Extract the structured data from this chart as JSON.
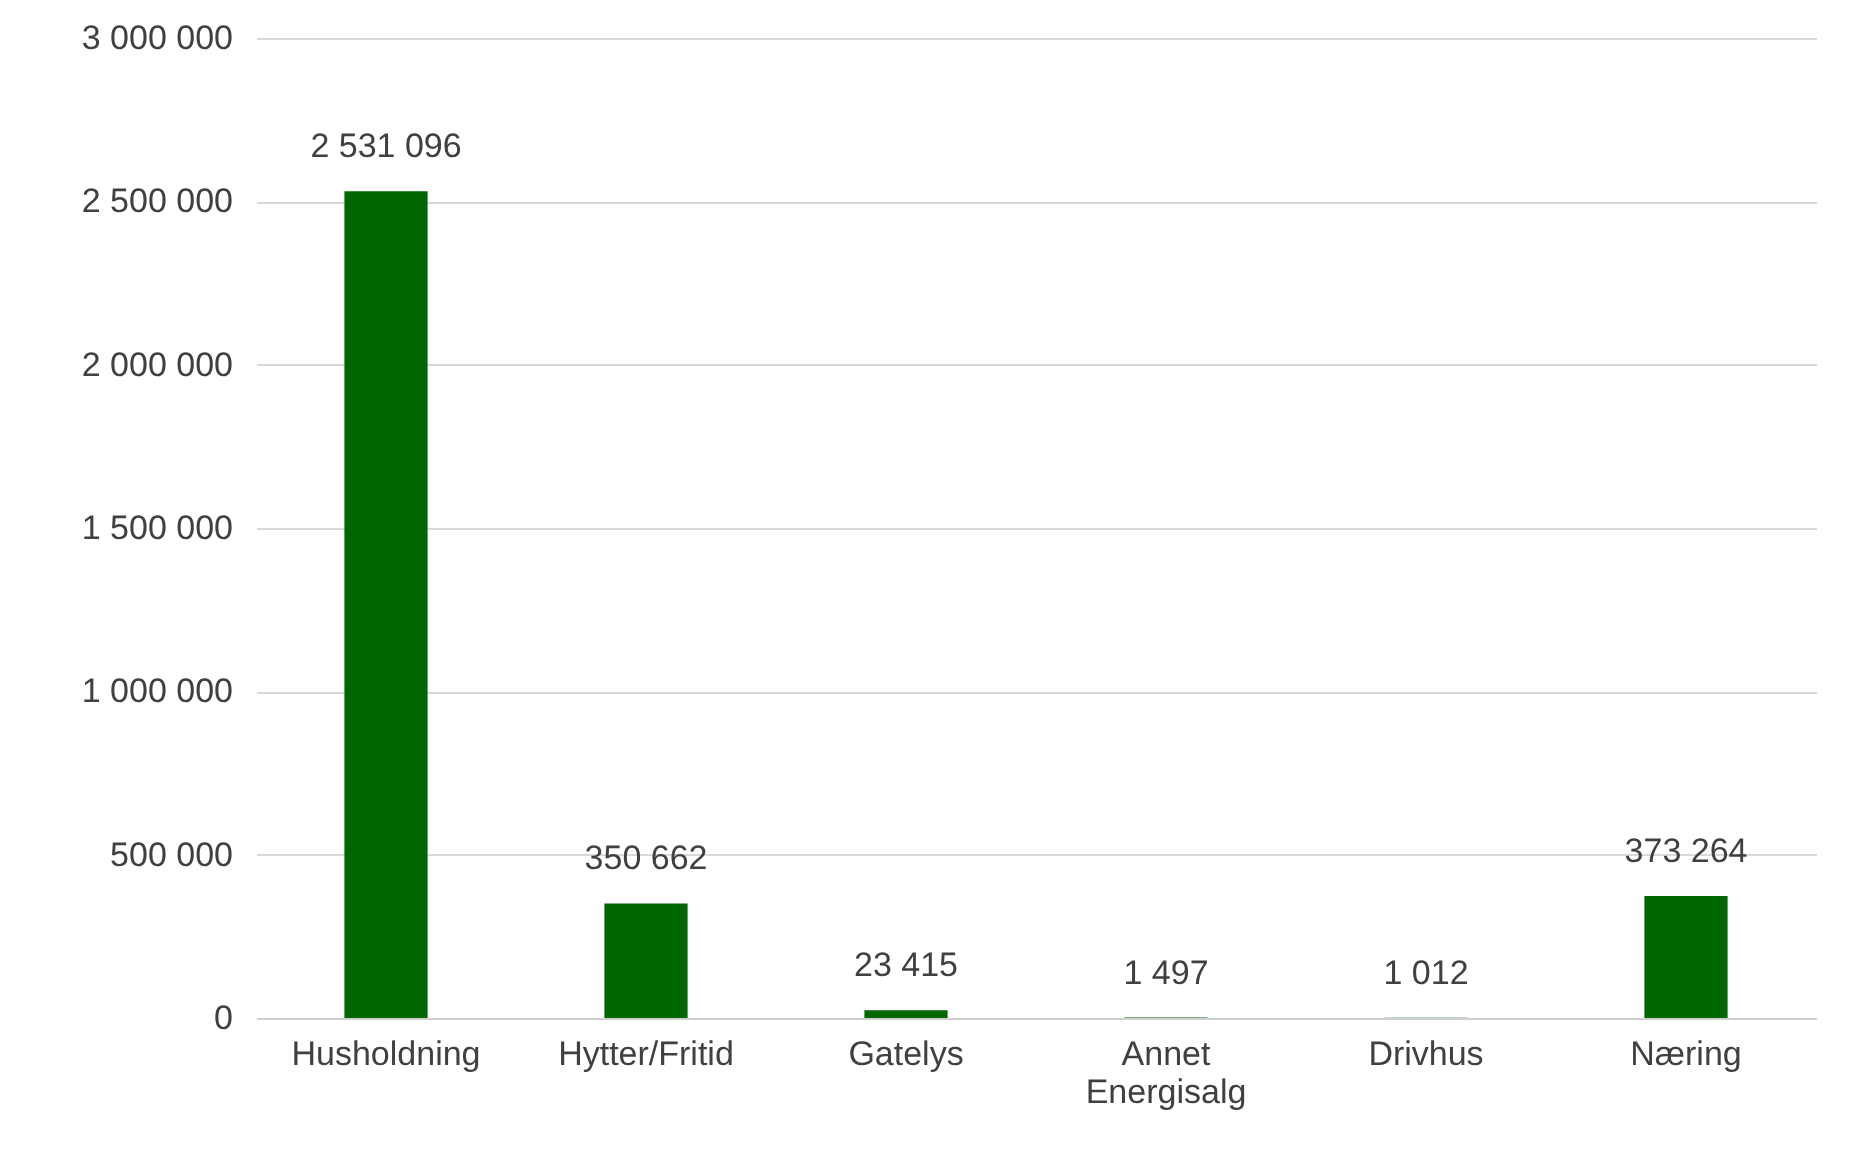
{
  "chart_data": {
    "type": "bar",
    "categories": [
      "Husholdning",
      "Hytter/Fritid",
      "Gatelys",
      "Annet Energisalg",
      "Drivhus",
      "Næring"
    ],
    "values": [
      2531096,
      350662,
      23415,
      1497,
      1012,
      373264
    ],
    "value_labels": [
      "2 531 096",
      "350 662",
      "23 415",
      "1 497",
      "1 012",
      "373 264"
    ],
    "color": "#006600",
    "ylim": [
      0,
      3000000
    ],
    "yticks": [
      {
        "value": 0,
        "label": "0"
      },
      {
        "value": 500000,
        "label": "500 000"
      },
      {
        "value": 1000000,
        "label": "1 000 000"
      },
      {
        "value": 1500000,
        "label": "1 500 000"
      },
      {
        "value": 2000000,
        "label": "2 000 000"
      },
      {
        "value": 2500000,
        "label": "2 500 000"
      },
      {
        "value": 3000000,
        "label": "3 000 000"
      }
    ],
    "grid": "y"
  }
}
